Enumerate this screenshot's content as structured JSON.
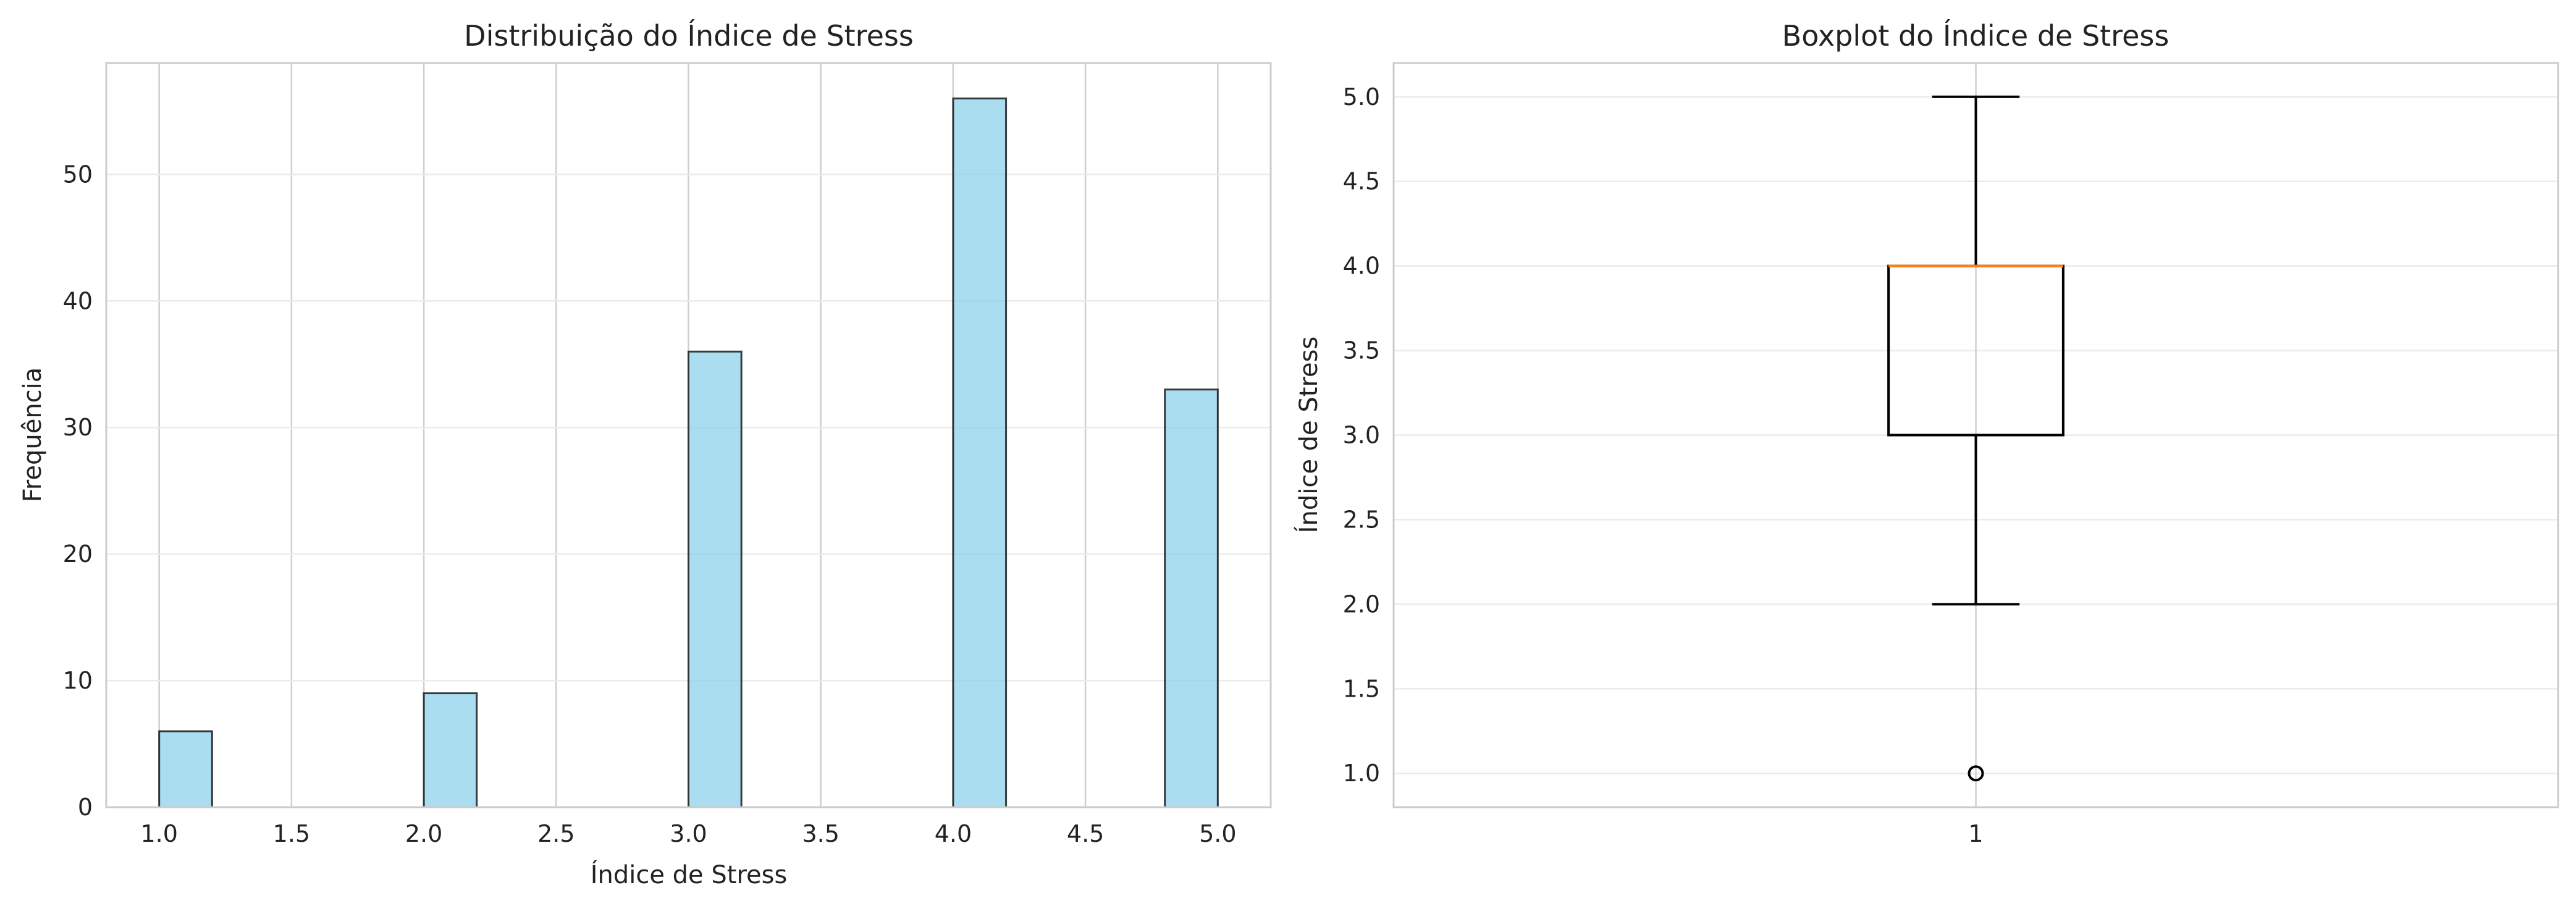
{
  "chart_data": [
    {
      "type": "histogram",
      "title": "Distribuição do Índice de Stress",
      "xlabel": "Índice de Stress",
      "ylabel": "Frequência",
      "xlim": [
        0.8,
        5.2
      ],
      "ylim": [
        0,
        58.8
      ],
      "x_ticks": [
        "1.0",
        "1.5",
        "2.0",
        "2.5",
        "3.0",
        "3.5",
        "4.0",
        "4.5",
        "5.0"
      ],
      "y_ticks": [
        "0",
        "10",
        "20",
        "30",
        "40",
        "50"
      ],
      "bins": [
        {
          "start": 1.0,
          "end": 1.2,
          "count": 6
        },
        {
          "start": 2.0,
          "end": 2.2,
          "count": 9
        },
        {
          "start": 3.0,
          "end": 3.2,
          "count": 36
        },
        {
          "start": 4.0,
          "end": 4.2,
          "count": 56
        },
        {
          "start": 4.8,
          "end": 5.0,
          "count": 33
        }
      ],
      "bar_color": "#87ceeb",
      "edge_color": "#000000",
      "grid": true
    },
    {
      "type": "boxplot",
      "title": "Boxplot do Índice de Stress",
      "xlabel": "",
      "ylabel": "Índice de Stress",
      "ylim": [
        0.8,
        5.2
      ],
      "x_ticks": [
        "1"
      ],
      "y_ticks": [
        "1.0",
        "1.5",
        "2.0",
        "2.5",
        "3.0",
        "3.5",
        "4.0",
        "4.5",
        "5.0"
      ],
      "box": {
        "position": 1,
        "whisker_low": 2.0,
        "q1": 3.0,
        "median": 4.0,
        "q3": 4.0,
        "whisker_high": 5.0,
        "outliers": [
          1.0
        ]
      },
      "median_color": "#ff7f0e",
      "grid": true
    }
  ]
}
